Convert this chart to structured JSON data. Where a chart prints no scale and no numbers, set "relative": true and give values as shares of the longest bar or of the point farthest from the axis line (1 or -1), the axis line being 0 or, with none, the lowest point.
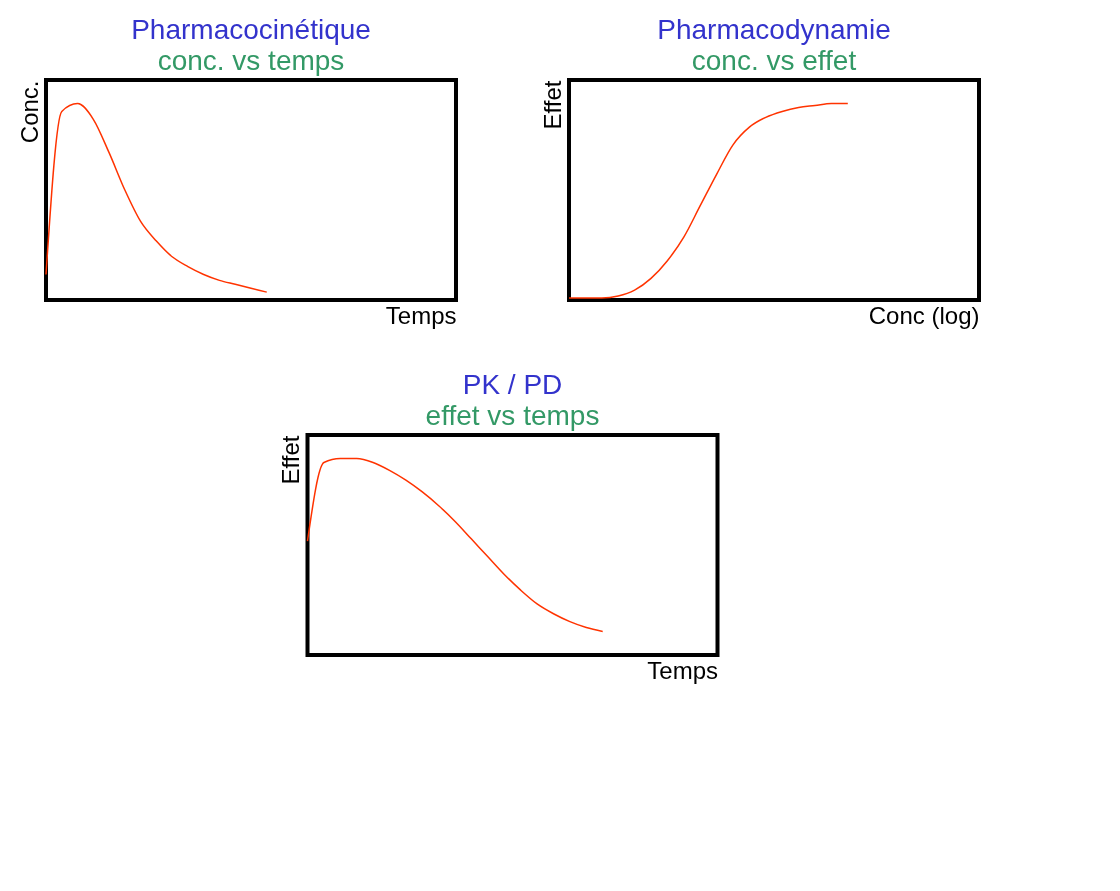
{
  "chart_data": [
    {
      "type": "line",
      "title": "Pharmacocinétique",
      "subtitle": "conc. vs temps",
      "xlabel": "Temps",
      "ylabel": "Conc.",
      "relative": true,
      "color": "#ff3300",
      "categories": [
        null,
        null,
        null,
        null,
        null,
        null,
        null,
        null,
        null,
        null,
        null,
        null,
        null,
        null,
        null,
        null,
        null,
        null,
        null,
        null,
        null,
        null,
        null,
        null,
        null,
        null,
        null
      ],
      "values": [
        0.13,
        0.96,
        1,
        0.92,
        0.75,
        0.56,
        0.4,
        0.3,
        0.22,
        0.17,
        0.13,
        0.1,
        0.08,
        0.06,
        0.04,
        null,
        null,
        null,
        null,
        null,
        null,
        null,
        null,
        null,
        null,
        null,
        null
      ]
    },
    {
      "type": "line",
      "title": "Pharmacodynamie",
      "subtitle": "conc. vs effet",
      "xlabel": "Conc (log)",
      "ylabel": "Effet",
      "relative": true,
      "color": "#ff3300",
      "categories": [
        null,
        null,
        null,
        null,
        null,
        null,
        null,
        null,
        null,
        null,
        null,
        null,
        null,
        null,
        null,
        null,
        null,
        null,
        null,
        null,
        null,
        null,
        null,
        null,
        null,
        null
      ],
      "values": [
        0.01,
        0.01,
        0.01,
        0.02,
        0.05,
        0.11,
        0.2,
        0.32,
        0.48,
        0.64,
        0.79,
        0.88,
        0.93,
        0.96,
        0.98,
        0.99,
        1,
        1,
        null,
        null,
        null,
        null,
        null,
        null,
        null,
        null
      ]
    },
    {
      "type": "line",
      "title": "PK / PD",
      "subtitle": "effet vs temps",
      "xlabel": "Temps",
      "ylabel": "Effet",
      "relative": true,
      "color": "#ff3300",
      "categories": [
        null,
        null,
        null,
        null,
        null,
        null,
        null,
        null,
        null,
        null,
        null,
        null,
        null,
        null,
        null,
        null,
        null,
        null,
        null,
        null,
        null,
        null,
        null,
        null,
        null,
        null
      ],
      "values": [
        0.58,
        0.98,
        1,
        1,
        0.98,
        0.94,
        0.89,
        0.83,
        0.76,
        0.68,
        0.59,
        0.5,
        0.41,
        0.33,
        0.26,
        0.21,
        0.17,
        0.14,
        0.12,
        null,
        null,
        null,
        null,
        null,
        null,
        null
      ]
    }
  ]
}
